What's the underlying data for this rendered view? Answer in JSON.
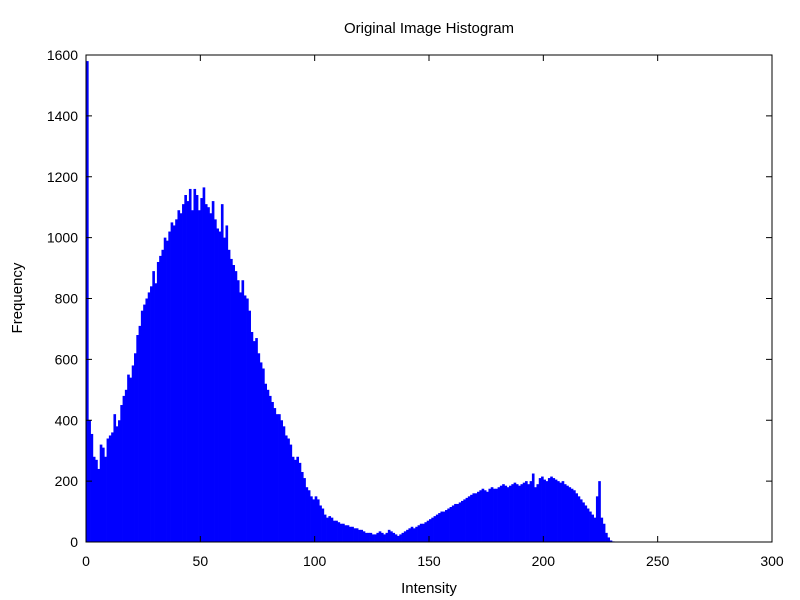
{
  "chart_data": {
    "type": "bar",
    "title": "Original Image Histogram",
    "xlabel": "Intensity",
    "ylabel": "Frequency",
    "xlim": [
      0,
      300
    ],
    "ylim": [
      0,
      1600
    ],
    "xticks": [
      0,
      50,
      100,
      150,
      200,
      250,
      300
    ],
    "yticks": [
      0,
      200,
      400,
      600,
      800,
      1000,
      1200,
      1400,
      1600
    ],
    "grid": false,
    "bar_color": "#0000ff",
    "series": [
      {
        "x_start": 0,
        "bin_width": 1,
        "values": [
          1580,
          400,
          355,
          280,
          270,
          240,
          320,
          310,
          280,
          340,
          350,
          360,
          420,
          380,
          400,
          450,
          480,
          500,
          550,
          540,
          580,
          620,
          680,
          710,
          760,
          780,
          800,
          820,
          840,
          890,
          850,
          920,
          940,
          960,
          1000,
          990,
          1020,
          1050,
          1040,
          1060,
          1090,
          1080,
          1110,
          1140,
          1120,
          1160,
          1090,
          1160,
          1140,
          1090,
          1130,
          1165,
          1110,
          1100,
          1080,
          1120,
          1060,
          1030,
          1020,
          1110,
          1000,
          1040,
          960,
          930,
          910,
          890,
          860,
          820,
          860,
          810,
          800,
          760,
          690,
          660,
          670,
          620,
          590,
          570,
          520,
          500,
          480,
          460,
          440,
          420,
          420,
          400,
          380,
          350,
          340,
          320,
          280,
          270,
          280,
          260,
          230,
          210,
          180,
          170,
          150,
          140,
          150,
          140,
          120,
          110,
          90,
          80,
          85,
          80,
          70,
          70,
          65,
          60,
          60,
          55,
          55,
          50,
          50,
          45,
          45,
          40,
          40,
          35,
          30,
          30,
          30,
          25,
          25,
          30,
          35,
          30,
          25,
          30,
          40,
          35,
          30,
          25,
          20,
          25,
          30,
          35,
          40,
          45,
          50,
          45,
          50,
          55,
          60,
          60,
          65,
          70,
          75,
          80,
          85,
          90,
          95,
          100,
          100,
          105,
          110,
          115,
          120,
          125,
          125,
          130,
          135,
          140,
          145,
          150,
          155,
          160,
          160,
          165,
          170,
          175,
          170,
          165,
          175,
          180,
          175,
          175,
          180,
          185,
          190,
          185,
          180,
          185,
          190,
          195,
          190,
          185,
          190,
          195,
          200,
          190,
          200,
          225,
          180,
          190,
          210,
          215,
          205,
          200,
          210,
          215,
          210,
          205,
          200,
          195,
          200,
          190,
          185,
          180,
          175,
          170,
          160,
          150,
          140,
          130,
          120,
          110,
          100,
          90,
          80,
          150,
          200,
          80,
          60,
          30,
          15,
          5,
          2,
          0
        ]
      }
    ]
  }
}
